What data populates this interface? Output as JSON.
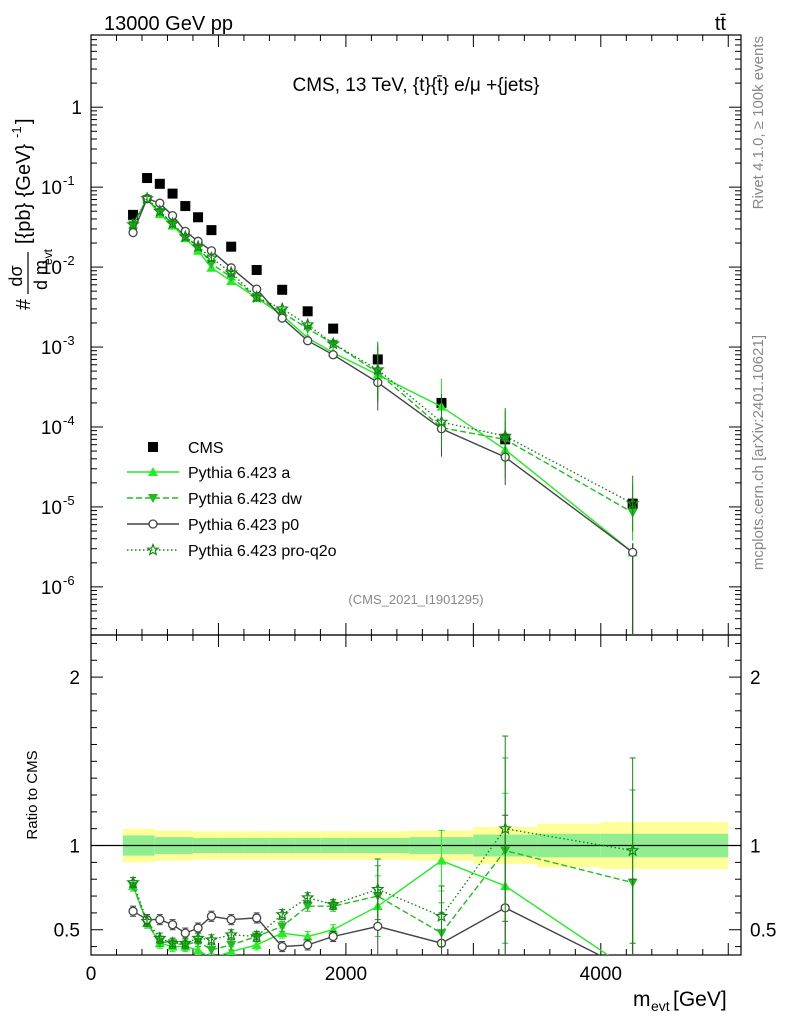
{
  "header": {
    "left": "13000 GeV pp",
    "right": "tt̄",
    "side_top": "Rivet 4.1.0, ≥ 100k events",
    "side_bottom": "mcplots.cern.ch [arXiv:2401.10621]"
  },
  "colors": {
    "cms": "#000000",
    "pythia_a": "#22ee22",
    "pythia_dw": "#22bb22",
    "pythia_p0": "#444444",
    "pythia_proq2o": "#118811",
    "band_inner": "#90ee90",
    "band_outer": "#ffff99"
  },
  "chart_data": [
    {
      "type": "scatter",
      "title": "CMS, 13 TeV, {t}{t̄} e/μ +{jets}",
      "ylabel": "#dσ/dm_evt [{pb} {GeV}^-1]",
      "ylabel_parts": {
        "hash": "#",
        "num": "dσ",
        "den": "d m",
        "den_sub": "evt",
        "units": "[{pb} {GeV}",
        "units_sup": "-1",
        "close": "]"
      },
      "yscale": "log",
      "ylim": [
        2.5e-07,
        8
      ],
      "xlim": [
        0,
        5100
      ],
      "yticks": [
        {
          "v": 1e-06,
          "b": "10",
          "e": "-6"
        },
        {
          "v": 1e-05,
          "b": "10",
          "e": "-5"
        },
        {
          "v": 0.0001,
          "b": "10",
          "e": "-4"
        },
        {
          "v": 0.001,
          "b": "10",
          "e": "-3"
        },
        {
          "v": 0.01,
          "b": "10",
          "e": "-2"
        },
        {
          "v": 0.1,
          "b": "10",
          "e": "-1"
        },
        {
          "v": 1,
          "b": "1",
          "e": ""
        }
      ],
      "watermark": "(CMS_2021_I1901295)",
      "x": [
        330,
        440,
        540,
        640,
        740,
        840,
        945,
        1100,
        1300,
        1500,
        1700,
        1900,
        2250,
        2750,
        3250,
        4250
      ],
      "series": [
        {
          "name": "CMS",
          "style": "cms",
          "values": [
            0.045,
            0.13,
            0.11,
            0.083,
            0.058,
            0.042,
            0.029,
            0.018,
            0.0092,
            0.0052,
            0.0028,
            0.0017,
            0.0007,
            0.0002,
            7e-05,
            1.1e-05
          ]
        },
        {
          "name": "Pythia 6.423 a",
          "style": "a",
          "values": [
            0.034,
            0.071,
            0.046,
            0.033,
            0.023,
            0.016,
            0.0098,
            0.0067,
            0.0041,
            0.0025,
            0.0013,
            0.00085,
            0.00045,
            0.00018,
            5.2e-05,
            2.7e-06
          ]
        },
        {
          "name": "Pythia 6.423 dw",
          "style": "dw",
          "values": [
            0.034,
            0.071,
            0.049,
            0.035,
            0.024,
            0.018,
            0.011,
            0.0075,
            0.0042,
            0.0027,
            0.0017,
            0.0011,
            0.00048,
            9.8e-05,
            7e-05,
            8.5e-06
          ]
        },
        {
          "name": "Pythia 6.423 p0",
          "style": "p0",
          "values": [
            0.027,
            0.072,
            0.063,
            0.044,
            0.028,
            0.021,
            0.016,
            0.0098,
            0.0053,
            0.0023,
            0.0012,
            0.0008,
            0.00036,
            9.5e-05,
            4.2e-05,
            2.7e-06
          ]
        },
        {
          "name": "Pythia 6.423 pro-q2o",
          "style": "pq",
          "values": [
            0.034,
            0.072,
            0.05,
            0.035,
            0.024,
            0.018,
            0.013,
            0.0085,
            0.0042,
            0.003,
            0.0019,
            0.0011,
            0.00052,
            0.000115,
            7.7e-05,
            1.1e-05
          ]
        }
      ]
    },
    {
      "type": "line",
      "ylabel": "Ratio to CMS",
      "xlabel": "m_evt [GeV]",
      "xlabel_parts": {
        "main": "m",
        "sub": "evt",
        "unit": " [GeV]"
      },
      "ylim": [
        0.35,
        2.25
      ],
      "xlim": [
        0,
        5100
      ],
      "xticks": [
        "0",
        "2000",
        "4000"
      ],
      "yticks": [
        "0.5",
        "1",
        "2"
      ],
      "x": [
        330,
        440,
        540,
        640,
        740,
        840,
        945,
        1100,
        1300,
        1500,
        1700,
        1900,
        2250,
        2750,
        3250,
        4250
      ],
      "band_edges": [
        250,
        500,
        800,
        1000,
        1200,
        1400,
        1600,
        1800,
        2000,
        2500,
        3000,
        3500,
        4000,
        5000
      ],
      "band_inner": [
        0.06,
        0.05,
        0.045,
        0.045,
        0.045,
        0.045,
        0.045,
        0.045,
        0.045,
        0.05,
        0.065,
        0.07,
        0.07
      ],
      "band_outer": [
        0.1,
        0.09,
        0.085,
        0.085,
        0.085,
        0.085,
        0.085,
        0.085,
        0.085,
        0.09,
        0.11,
        0.13,
        0.14
      ],
      "series": [
        {
          "name": "Pythia 6.423 a",
          "style": "a",
          "values": [
            0.76,
            0.54,
            0.42,
            0.4,
            0.4,
            0.38,
            0.33,
            0.37,
            0.41,
            0.48,
            0.46,
            0.5,
            0.64,
            0.91,
            0.76,
            0.25
          ]
        },
        {
          "name": "Pythia 6.423 dw",
          "style": "dw",
          "values": [
            0.76,
            0.54,
            0.43,
            0.42,
            0.41,
            0.43,
            0.38,
            0.41,
            0.46,
            0.52,
            0.64,
            0.64,
            0.7,
            0.48,
            0.97,
            0.78
          ]
        },
        {
          "name": "Pythia 6.423 p0",
          "style": "p0",
          "values": [
            0.61,
            0.56,
            0.56,
            0.53,
            0.48,
            0.51,
            0.58,
            0.56,
            0.57,
            0.4,
            0.41,
            0.46,
            0.52,
            0.42,
            0.63,
            0.25
          ]
        },
        {
          "name": "Pythia 6.423 pro-q2o",
          "style": "pq",
          "values": [
            0.78,
            0.55,
            0.45,
            0.42,
            0.42,
            0.45,
            0.44,
            0.47,
            0.46,
            0.59,
            0.69,
            0.65,
            0.74,
            0.58,
            1.1,
            0.97
          ]
        }
      ]
    }
  ]
}
